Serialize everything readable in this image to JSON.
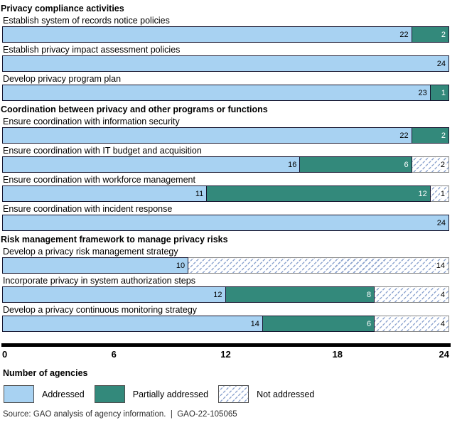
{
  "chart_data": {
    "type": "bar",
    "orientation": "horizontal",
    "stacked": true,
    "xlabel": "Number of agencies",
    "xlim": [
      0,
      24
    ],
    "x_ticks": [
      0,
      6,
      12,
      18,
      24
    ],
    "grid": false,
    "legend_position": "bottom",
    "series_order": [
      "Addressed",
      "Partially addressed",
      "Not addressed"
    ],
    "sections": [
      {
        "header": "Privacy compliance activities",
        "rows": [
          {
            "label": "Establish system of records notice policies",
            "values": [
              22,
              2,
              0
            ]
          },
          {
            "label": "Establish privacy impact assessment policies",
            "values": [
              24,
              0,
              0
            ]
          },
          {
            "label": "Develop privacy program plan",
            "values": [
              23,
              1,
              0
            ]
          }
        ]
      },
      {
        "header": "Coordination between privacy and other programs or functions",
        "rows": [
          {
            "label": "Ensure coordination with information security",
            "values": [
              22,
              2,
              0
            ]
          },
          {
            "label": "Ensure coordination with IT budget and acquisition",
            "values": [
              16,
              6,
              2
            ]
          },
          {
            "label": "Ensure coordination with workforce management",
            "values": [
              11,
              12,
              1
            ]
          },
          {
            "label": "Ensure coordination with incident response",
            "values": [
              24,
              0,
              0
            ]
          }
        ]
      },
      {
        "header": "Risk management framework to manage privacy risks",
        "rows": [
          {
            "label": "Develop a privacy risk management strategy",
            "values": [
              10,
              0,
              14
            ]
          },
          {
            "label": "Incorporate privacy in system authorization steps",
            "values": [
              12,
              8,
              4
            ]
          },
          {
            "label": "Develop a privacy continuous monitoring strategy",
            "values": [
              14,
              6,
              4
            ]
          }
        ]
      }
    ]
  },
  "legend": {
    "items": [
      {
        "label": "Addressed",
        "swatch": "addressed"
      },
      {
        "label": "Partially addressed",
        "swatch": "partial"
      },
      {
        "label": "Not addressed",
        "swatch": "not"
      }
    ]
  },
  "source": "Source: GAO analysis of agency information.  |  GAO-22-105065",
  "colors": {
    "addressed": "#a8d2f2",
    "partially_addressed": "#33897b",
    "hatch_line": "#8fa6d0",
    "segment_border": "#14142e",
    "hatch_border": "#868686",
    "axis": "#000000"
  }
}
